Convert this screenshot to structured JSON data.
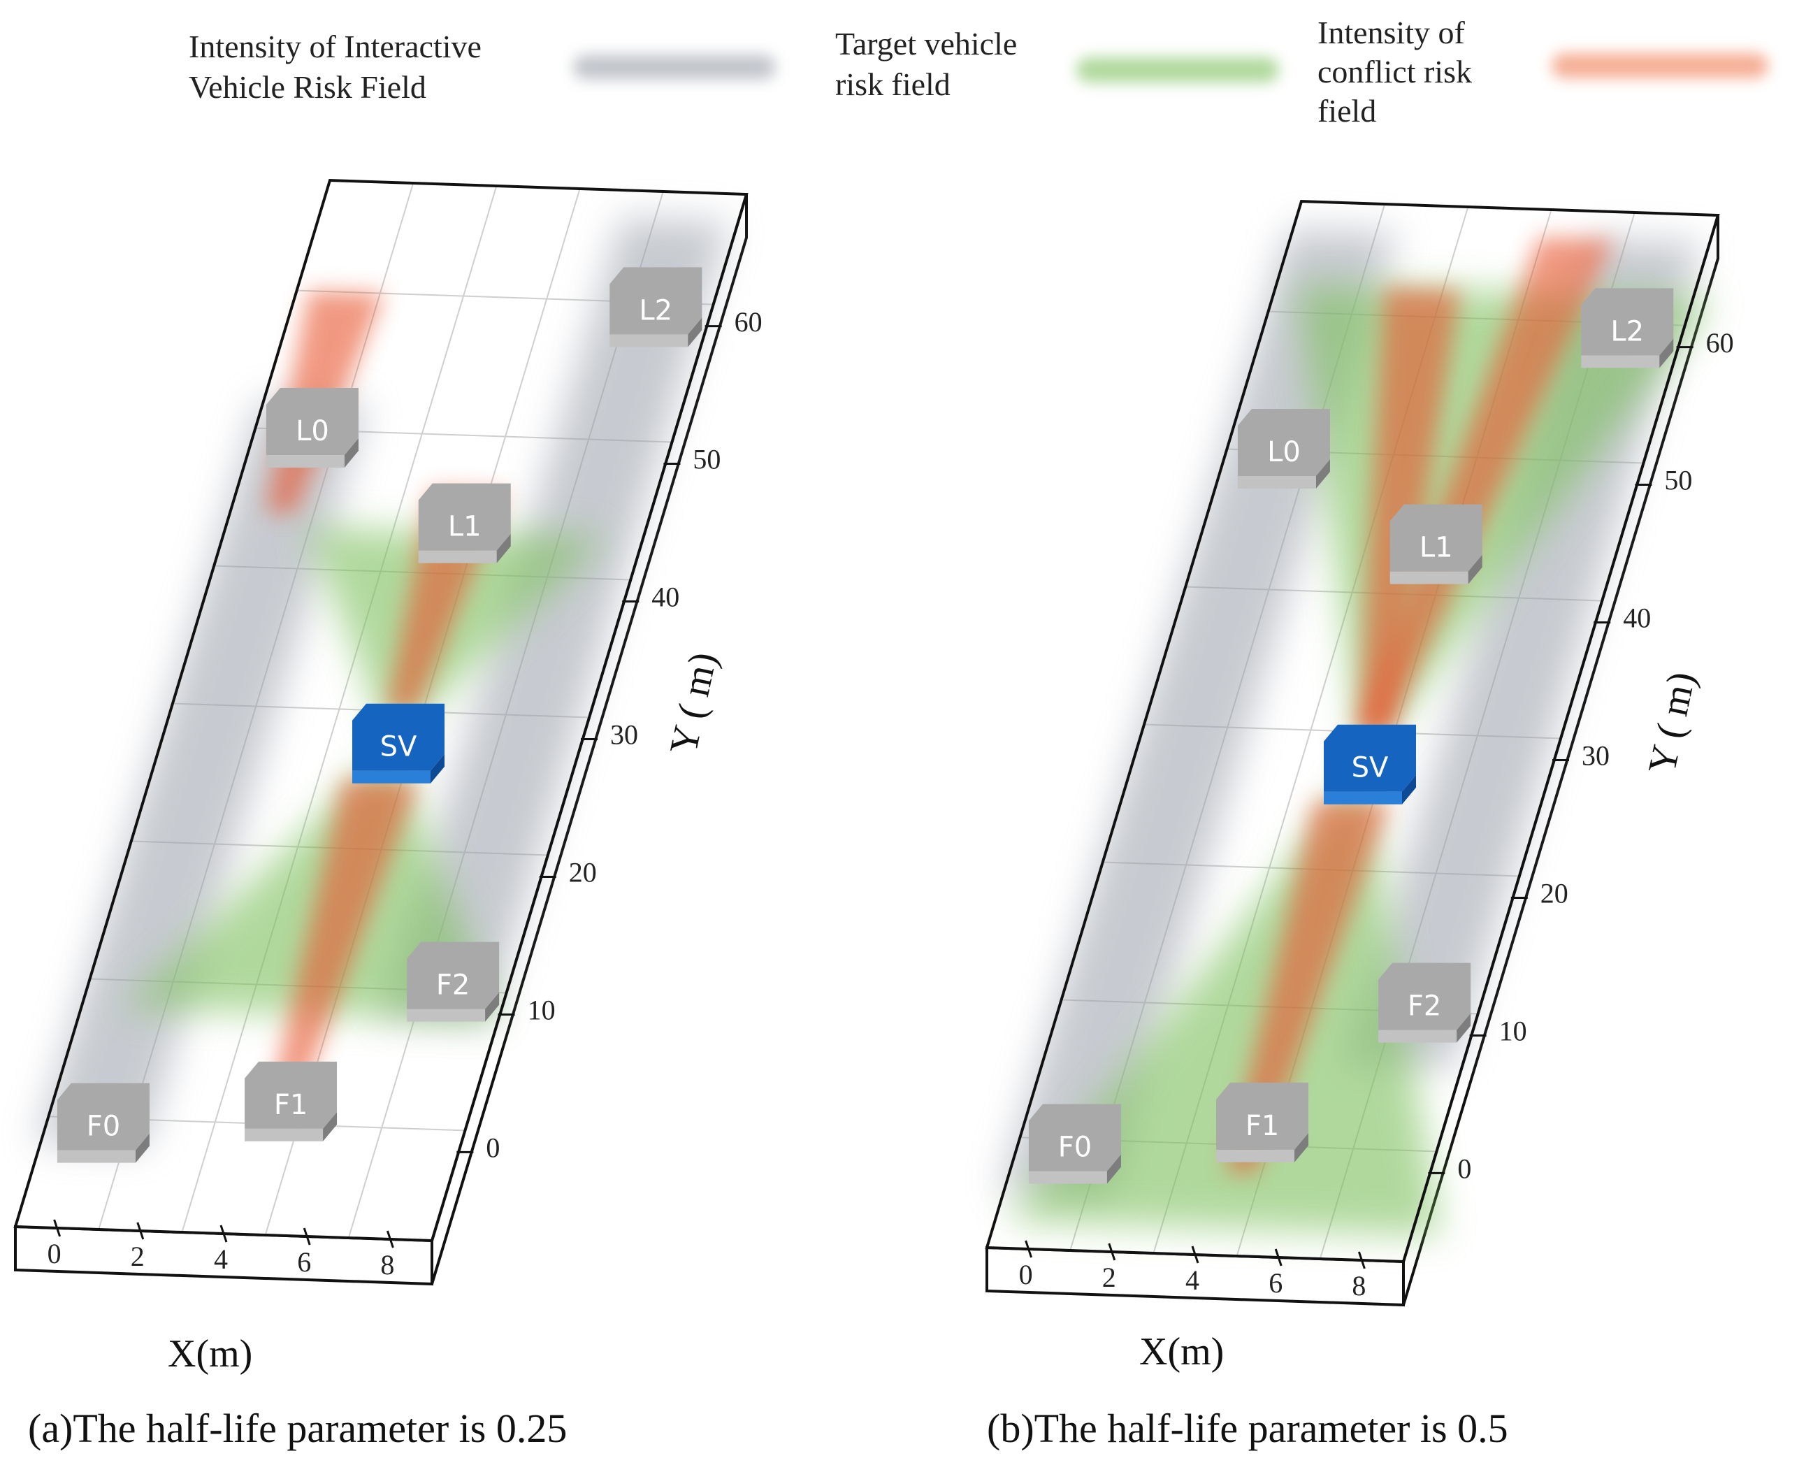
{
  "legend": [
    {
      "label_lines": [
        "Intensity of Interactive",
        "Vehicle Risk Field"
      ],
      "color": "#9aa0aa"
    },
    {
      "label_lines": [
        "Target vehicle",
        "risk field"
      ],
      "color": "#7cbf5c"
    },
    {
      "label_lines": [
        "Intensity of",
        "conflict risk",
        "field"
      ],
      "color": "#ef7a4f"
    }
  ],
  "colors": {
    "subject_vehicle": "#1565c0",
    "other_vehicle": "#a9a9a9",
    "interactive_field": "#9aa0aa",
    "target_field": "#7cbf5c",
    "conflict_field": "#e8552e"
  },
  "chart_data": [
    {
      "type": "diagram",
      "caption": "(a)The half-life parameter is 0.25",
      "half_life": 0.25,
      "xlabel": "X(m)",
      "ylabel": "Y ( m)",
      "x_ticks": [
        "0",
        "2",
        "4",
        "6",
        "8"
      ],
      "y_ticks": [
        "0",
        "10",
        "20",
        "30",
        "40",
        "50",
        "60"
      ],
      "xlim": [
        0,
        10
      ],
      "ylim": [
        -8,
        68
      ],
      "vehicles": [
        {
          "label": "F0",
          "x": 1.2,
          "y": -0.5,
          "kind": "other"
        },
        {
          "label": "F1",
          "x": 5.5,
          "y": 1.5,
          "kind": "other"
        },
        {
          "label": "F2",
          "x": 8.5,
          "y": 10.5,
          "kind": "other"
        },
        {
          "label": "SV",
          "x": 5.5,
          "y": 27.5,
          "kind": "subject"
        },
        {
          "label": "L1",
          "x": 5.5,
          "y": 43.5,
          "kind": "other"
        },
        {
          "label": "L0",
          "x": 1.2,
          "y": 50.0,
          "kind": "other"
        },
        {
          "label": "L2",
          "x": 8.5,
          "y": 59.5,
          "kind": "other"
        }
      ],
      "fields": {
        "interactive_lanes": [
          {
            "x": 1.2,
            "y0": -2,
            "y1": 52
          },
          {
            "x": 8.5,
            "y0": 8,
            "y1": 66
          }
        ],
        "conflict": [
          {
            "x0": 5.5,
            "y0": 2,
            "x1": 5.5,
            "y1": 25
          },
          {
            "x0": 5.5,
            "y0": 30,
            "x1": 5.5,
            "y1": 46
          },
          {
            "x0": 1.2,
            "y0": 44,
            "x1": 1.2,
            "y1": 60
          }
        ],
        "target": [
          {
            "y_apex": 27.5,
            "y_far": 43,
            "half_width_far": 3.6
          },
          {
            "y_apex": 27.5,
            "y_far": 8,
            "half_width_far": 4.5
          }
        ]
      }
    },
    {
      "type": "diagram",
      "caption": "(b)The half-life parameter is 0.5",
      "half_life": 0.5,
      "xlabel": "X(m)",
      "ylabel": "Y ( m)",
      "x_ticks": [
        "0",
        "2",
        "4",
        "6",
        "8"
      ],
      "y_ticks": [
        "0",
        "10",
        "20",
        "30",
        "40",
        "50",
        "60"
      ],
      "xlim": [
        0,
        10
      ],
      "ylim": [
        -8,
        68
      ],
      "vehicles": [
        {
          "label": "F0",
          "x": 1.2,
          "y": -0.5,
          "kind": "other"
        },
        {
          "label": "F1",
          "x": 5.5,
          "y": 1.5,
          "kind": "other"
        },
        {
          "label": "F2",
          "x": 8.5,
          "y": 10.5,
          "kind": "other"
        },
        {
          "label": "SV",
          "x": 5.5,
          "y": 27.5,
          "kind": "subject"
        },
        {
          "label": "L1",
          "x": 5.5,
          "y": 43.5,
          "kind": "other"
        },
        {
          "label": "L0",
          "x": 1.2,
          "y": 50.0,
          "kind": "other"
        },
        {
          "label": "L2",
          "x": 8.5,
          "y": 59.5,
          "kind": "other"
        }
      ],
      "fields": {
        "interactive_lanes": [
          {
            "x": 1.2,
            "y0": -4,
            "y1": 66
          },
          {
            "x": 8.5,
            "y0": 6,
            "y1": 66
          }
        ],
        "conflict": [
          {
            "x0": 5.5,
            "y0": -2,
            "x1": 5.5,
            "y1": 25
          },
          {
            "x0": 5.5,
            "y0": 30,
            "x1": 6.8,
            "y1": 66
          },
          {
            "x0": 5.5,
            "y0": 30,
            "x1": 3.5,
            "y1": 62
          }
        ],
        "target": [
          {
            "y_apex": 27.5,
            "y_far": 62,
            "half_width_far": 5.0
          },
          {
            "y_apex": 27.5,
            "y_far": -6,
            "half_width_far": 5.2
          }
        ]
      }
    }
  ]
}
